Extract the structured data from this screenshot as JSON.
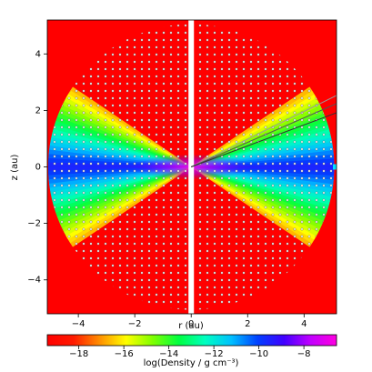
{
  "chart_data": {
    "type": "density-map",
    "xlabel": "r (au)",
    "ylabel": "z (au)",
    "xlim": [
      -5.1,
      5.15
    ],
    "ylim": [
      -5.2,
      5.2
    ],
    "xticks": [
      {
        "value": -4,
        "label": "−4"
      },
      {
        "value": -2,
        "label": "−2"
      },
      0,
      2,
      4
    ],
    "yticks": [
      {
        "value": -4,
        "label": "−4"
      },
      {
        "value": -2,
        "label": "−2"
      },
      0,
      2,
      4
    ],
    "colorbar": {
      "label": "log(Density / g cm⁻³)",
      "lim": [
        -19.4,
        -6.55
      ],
      "ticks": [
        {
          "value": -18,
          "label": "−18"
        },
        {
          "value": -16,
          "label": "−16"
        },
        {
          "value": -14,
          "label": "−14"
        },
        {
          "value": -12,
          "label": "−12"
        },
        {
          "value": -10,
          "label": "−10"
        },
        {
          "value": -8,
          "label": "−8"
        }
      ],
      "colormap": [
        "#ff0000",
        "#ff1a00",
        "#ff9000",
        "#ffff00",
        "#80ff00",
        "#00ff40",
        "#00ffc0",
        "#00c0ff",
        "#0040ff",
        "#4000ff",
        "#c000ff",
        "#ff00e0"
      ]
    }
  }
}
